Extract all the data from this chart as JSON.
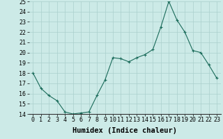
{
  "x": [
    0,
    1,
    2,
    3,
    4,
    5,
    6,
    7,
    8,
    9,
    10,
    11,
    12,
    13,
    14,
    15,
    16,
    17,
    18,
    19,
    20,
    21,
    22,
    23
  ],
  "y": [
    18,
    16.5,
    15.8,
    15.3,
    14.2,
    14.0,
    14.1,
    14.2,
    15.8,
    17.3,
    19.5,
    19.4,
    19.1,
    19.5,
    19.8,
    20.3,
    22.5,
    25.0,
    23.2,
    22.0,
    20.2,
    20.0,
    18.8,
    17.5
  ],
  "xlabel": "Humidex (Indice chaleur)",
  "ylim": [
    14,
    25
  ],
  "xlim": [
    -0.5,
    23.5
  ],
  "yticks": [
    14,
    15,
    16,
    17,
    18,
    19,
    20,
    21,
    22,
    23,
    24,
    25
  ],
  "xticks": [
    0,
    1,
    2,
    3,
    4,
    5,
    6,
    7,
    8,
    9,
    10,
    11,
    12,
    13,
    14,
    15,
    16,
    17,
    18,
    19,
    20,
    21,
    22,
    23
  ],
  "line_color": "#1a6b5a",
  "marker_color": "#1a6b5a",
  "bg_color": "#cceae7",
  "grid_color": "#aacfcc",
  "fig_bg": "#cceae7",
  "tick_fontsize": 6,
  "xlabel_fontsize": 7.5
}
